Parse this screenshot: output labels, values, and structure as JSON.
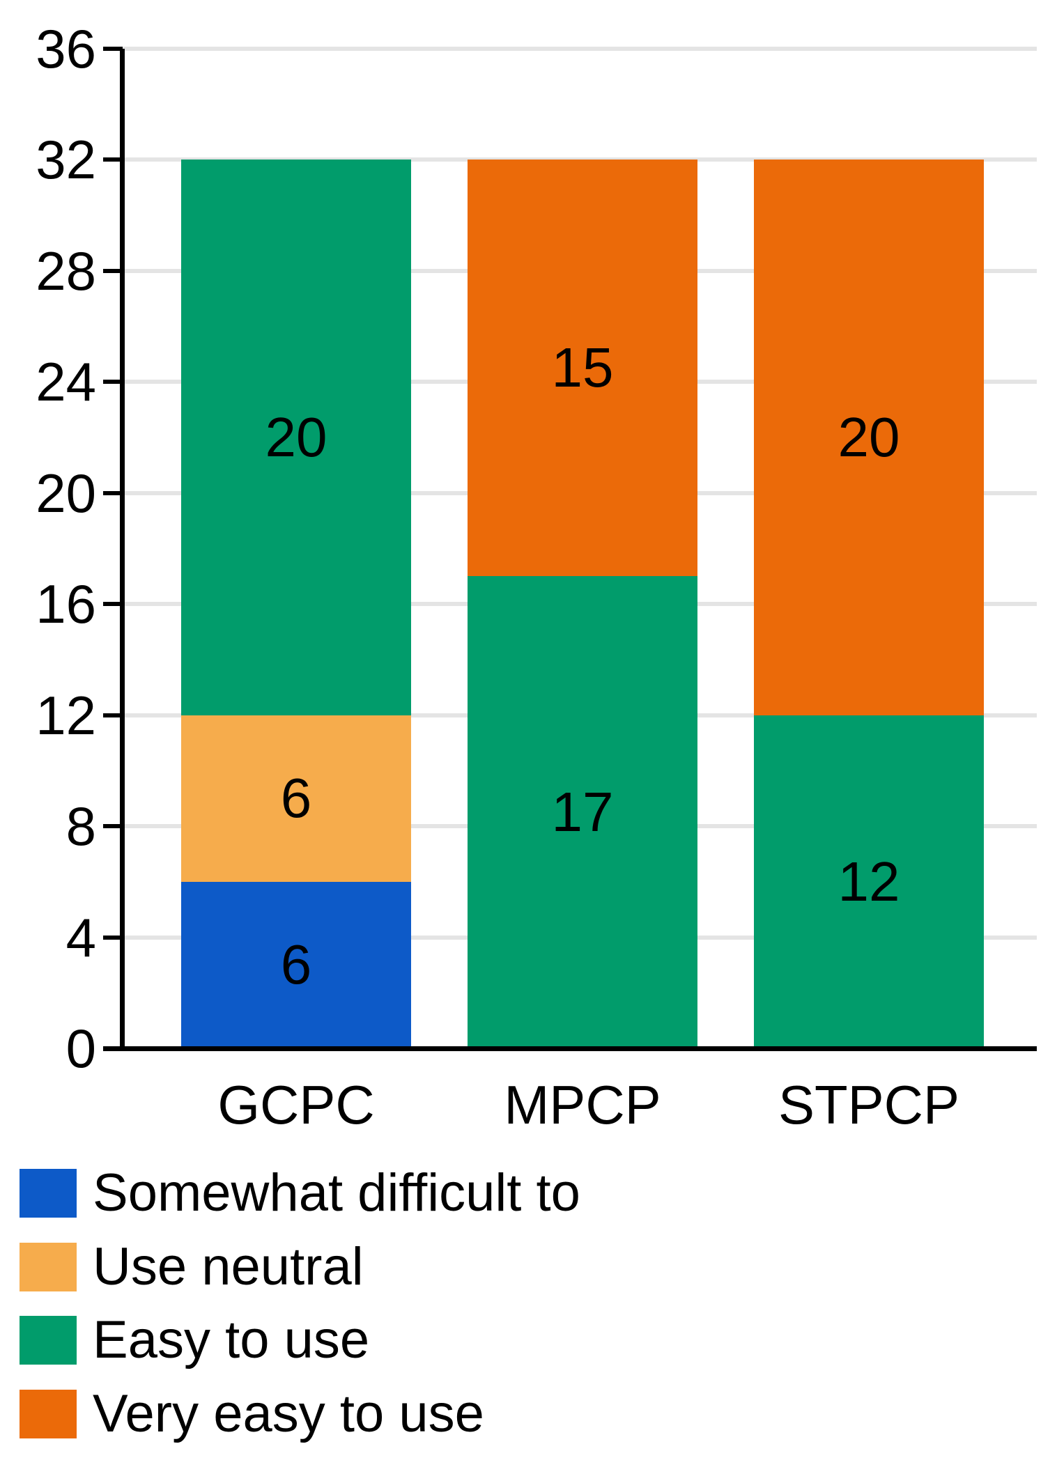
{
  "chart_data": {
    "type": "bar",
    "subtype": "stacked-vertical",
    "title": "",
    "categories": [
      "GCPC",
      "MPCP",
      "STPCP"
    ],
    "series": [
      {
        "name": "Somewhat difficult to",
        "color": "#0d5ac8",
        "values": [
          6,
          0,
          0
        ]
      },
      {
        "name": "Use neutral",
        "color": "#f6ac4c",
        "values": [
          6,
          0,
          0
        ]
      },
      {
        "name": "Easy to use",
        "color": "#019c6b",
        "values": [
          20,
          17,
          12
        ]
      },
      {
        "name": "Very easy to use",
        "color": "#eb6a09",
        "values": [
          0,
          15,
          20
        ]
      }
    ],
    "bar_totals": [
      32,
      32,
      32
    ],
    "visible_value_labels": [
      6,
      6,
      20,
      17,
      15,
      12
    ],
    "xlabel": "",
    "ylabel": "",
    "yticks": [
      0,
      4,
      8,
      12,
      16,
      20,
      24,
      28,
      32,
      36
    ],
    "ylim": [
      0,
      36
    ],
    "grid": true,
    "legend_position": "bottom-left"
  },
  "colors": {
    "background": "#ffffff",
    "axis": "#000000",
    "gridline": "#e4e4e4",
    "text": "#000000"
  }
}
